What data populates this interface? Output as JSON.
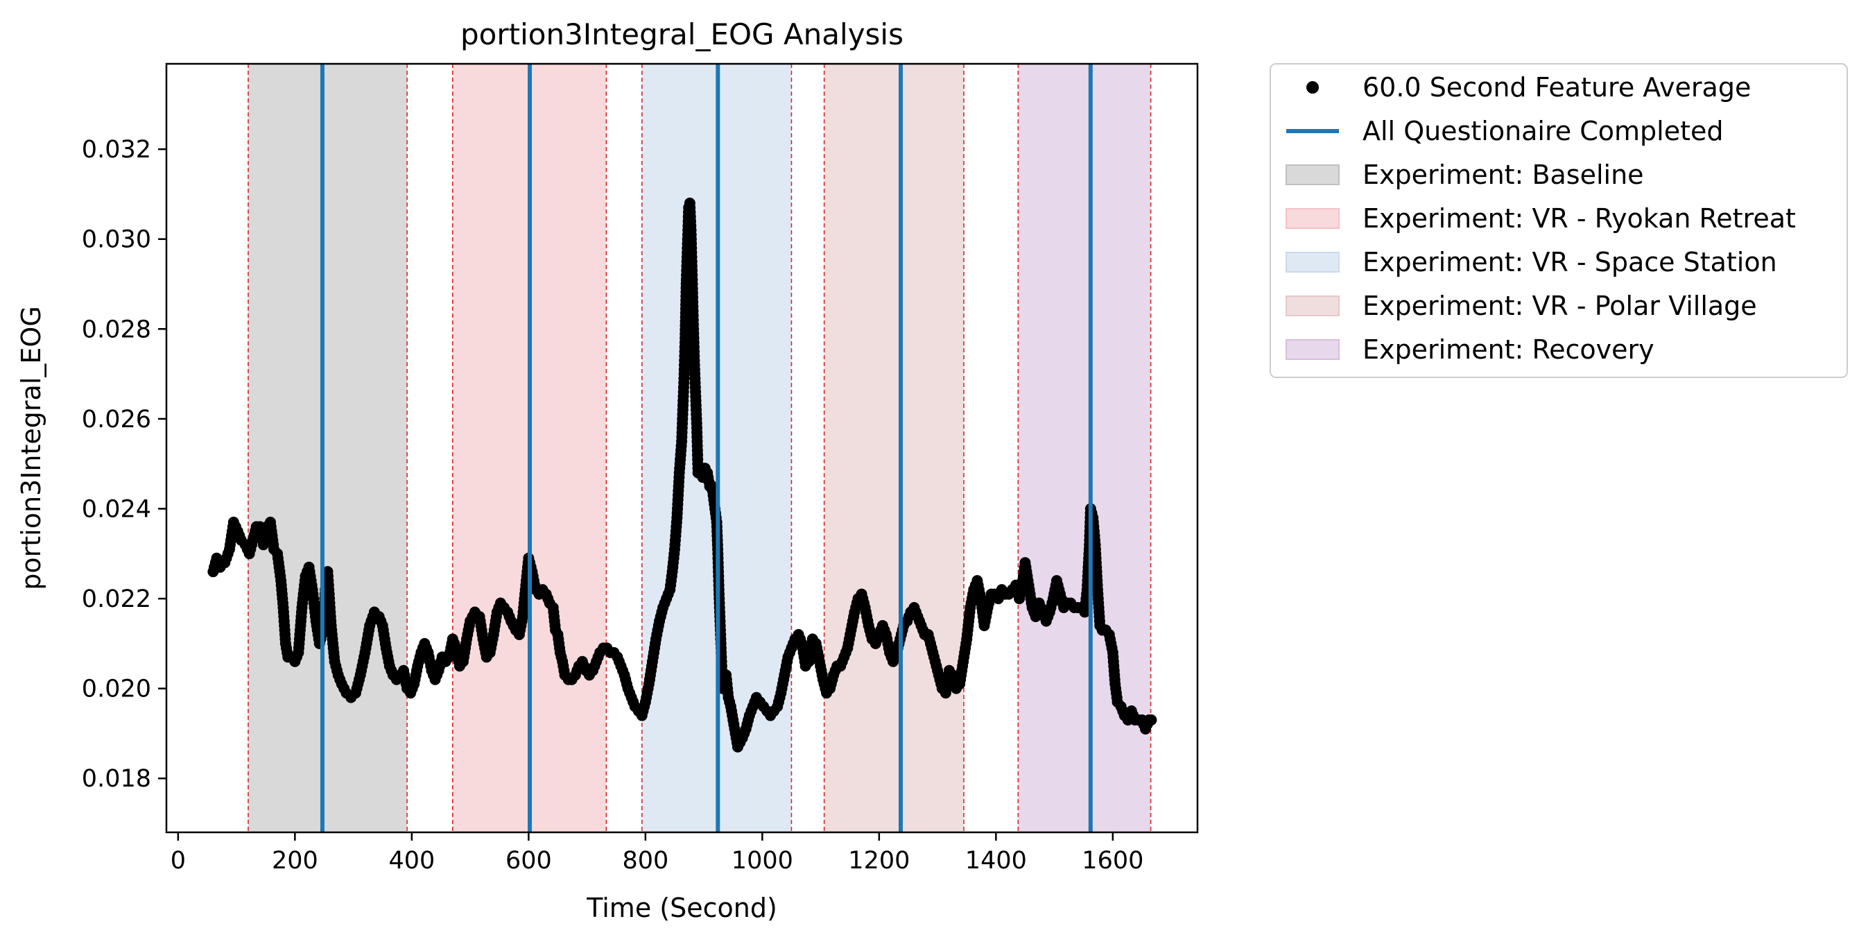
{
  "chart_data": {
    "type": "scatter",
    "title": "portion3Integral_EOG Analysis",
    "xlabel": "Time (Second)",
    "ylabel": "portion3Integral_EOG",
    "xlim": [
      -20,
      1745
    ],
    "ylim": [
      0.0168,
      0.0339
    ],
    "x_ticks": [
      0,
      200,
      400,
      600,
      800,
      1000,
      1200,
      1400,
      1600
    ],
    "x_tick_labels": [
      "0",
      "200",
      "400",
      "600",
      "800",
      "1000",
      "1200",
      "1400",
      "1600"
    ],
    "y_ticks": [
      0.018,
      0.02,
      0.022,
      0.024,
      0.026,
      0.028,
      0.03,
      0.032
    ],
    "y_tick_labels": [
      "0.018",
      "0.020",
      "0.022",
      "0.024",
      "0.026",
      "0.028",
      "0.030",
      "0.032"
    ],
    "grid": false,
    "legend_position": "outside-right-top",
    "series": [
      {
        "name": "60.0 Second Feature Average",
        "marker": "dot",
        "color": "#000000",
        "points": [
          [
            60,
            0.0226
          ],
          [
            66,
            0.0229
          ],
          [
            72,
            0.0227
          ],
          [
            80,
            0.0228
          ],
          [
            88,
            0.0231
          ],
          [
            95,
            0.0237
          ],
          [
            102,
            0.0235
          ],
          [
            108,
            0.0233
          ],
          [
            115,
            0.0232
          ],
          [
            122,
            0.023
          ],
          [
            128,
            0.0233
          ],
          [
            134,
            0.0236
          ],
          [
            140,
            0.0236
          ],
          [
            146,
            0.0232
          ],
          [
            152,
            0.0236
          ],
          [
            158,
            0.0237
          ],
          [
            164,
            0.0231
          ],
          [
            170,
            0.023
          ],
          [
            176,
            0.0224
          ],
          [
            180,
            0.0218
          ],
          [
            184,
            0.021
          ],
          [
            188,
            0.0207
          ],
          [
            194,
            0.0207
          ],
          [
            200,
            0.0206
          ],
          [
            206,
            0.0208
          ],
          [
            212,
            0.0218
          ],
          [
            218,
            0.0225
          ],
          [
            224,
            0.0227
          ],
          [
            230,
            0.0222
          ],
          [
            236,
            0.0215
          ],
          [
            242,
            0.021
          ],
          [
            248,
            0.0213
          ],
          [
            252,
            0.0222
          ],
          [
            256,
            0.0226
          ],
          [
            262,
            0.0214
          ],
          [
            268,
            0.0206
          ],
          [
            274,
            0.0203
          ],
          [
            280,
            0.0201
          ],
          [
            288,
            0.0199
          ],
          [
            296,
            0.0198
          ],
          [
            304,
            0.0199
          ],
          [
            312,
            0.0203
          ],
          [
            320,
            0.0208
          ],
          [
            328,
            0.0214
          ],
          [
            336,
            0.0217
          ],
          [
            344,
            0.0216
          ],
          [
            350,
            0.0214
          ],
          [
            356,
            0.0209
          ],
          [
            362,
            0.0205
          ],
          [
            368,
            0.0203
          ],
          [
            374,
            0.0202
          ],
          [
            380,
            0.0203
          ],
          [
            386,
            0.0204
          ],
          [
            392,
            0.02
          ],
          [
            398,
            0.0199
          ],
          [
            404,
            0.0201
          ],
          [
            410,
            0.0205
          ],
          [
            416,
            0.0208
          ],
          [
            422,
            0.021
          ],
          [
            428,
            0.0208
          ],
          [
            434,
            0.0204
          ],
          [
            440,
            0.0202
          ],
          [
            446,
            0.0204
          ],
          [
            452,
            0.0207
          ],
          [
            458,
            0.0206
          ],
          [
            464,
            0.0207
          ],
          [
            470,
            0.0211
          ],
          [
            476,
            0.0209
          ],
          [
            482,
            0.0205
          ],
          [
            488,
            0.0206
          ],
          [
            494,
            0.0211
          ],
          [
            500,
            0.0215
          ],
          [
            508,
            0.0217
          ],
          [
            516,
            0.0216
          ],
          [
            522,
            0.0211
          ],
          [
            528,
            0.0207
          ],
          [
            534,
            0.0208
          ],
          [
            540,
            0.0212
          ],
          [
            546,
            0.0217
          ],
          [
            552,
            0.0219
          ],
          [
            558,
            0.0218
          ],
          [
            564,
            0.0217
          ],
          [
            570,
            0.0215
          ],
          [
            578,
            0.0213
          ],
          [
            584,
            0.0212
          ],
          [
            590,
            0.0216
          ],
          [
            596,
            0.0224
          ],
          [
            600,
            0.0229
          ],
          [
            606,
            0.0226
          ],
          [
            612,
            0.0222
          ],
          [
            618,
            0.0221
          ],
          [
            624,
            0.0222
          ],
          [
            630,
            0.0221
          ],
          [
            636,
            0.0219
          ],
          [
            642,
            0.0218
          ],
          [
            646,
            0.0213
          ],
          [
            650,
            0.0212
          ],
          [
            654,
            0.0208
          ],
          [
            658,
            0.0206
          ],
          [
            662,
            0.0203
          ],
          [
            668,
            0.0202
          ],
          [
            674,
            0.0202
          ],
          [
            680,
            0.0203
          ],
          [
            686,
            0.0205
          ],
          [
            692,
            0.0206
          ],
          [
            698,
            0.0204
          ],
          [
            704,
            0.0203
          ],
          [
            710,
            0.0204
          ],
          [
            716,
            0.0206
          ],
          [
            722,
            0.0208
          ],
          [
            728,
            0.0209
          ],
          [
            734,
            0.0209
          ],
          [
            740,
            0.0208
          ],
          [
            746,
            0.0208
          ],
          [
            752,
            0.0207
          ],
          [
            758,
            0.0205
          ],
          [
            764,
            0.0203
          ],
          [
            770,
            0.02
          ],
          [
            776,
            0.0198
          ],
          [
            782,
            0.0196
          ],
          [
            788,
            0.0195
          ],
          [
            794,
            0.0194
          ],
          [
            800,
            0.0197
          ],
          [
            806,
            0.0201
          ],
          [
            812,
            0.0206
          ],
          [
            818,
            0.0211
          ],
          [
            824,
            0.0215
          ],
          [
            830,
            0.0218
          ],
          [
            836,
            0.022
          ],
          [
            842,
            0.0222
          ],
          [
            846,
            0.0226
          ],
          [
            850,
            0.0231
          ],
          [
            854,
            0.0238
          ],
          [
            858,
            0.0248
          ],
          [
            862,
            0.0255
          ],
          [
            864,
            0.0262
          ],
          [
            866,
            0.0269
          ],
          [
            868,
            0.0278
          ],
          [
            870,
            0.0291
          ],
          [
            872,
            0.0299
          ],
          [
            874,
            0.0307
          ],
          [
            876,
            0.0308
          ],
          [
            878,
            0.0302
          ],
          [
            880,
            0.0292
          ],
          [
            882,
            0.0281
          ],
          [
            884,
            0.0272
          ],
          [
            886,
            0.0265
          ],
          [
            888,
            0.0258
          ],
          [
            890,
            0.0248
          ],
          [
            894,
            0.0249
          ],
          [
            898,
            0.0247
          ],
          [
            902,
            0.0249
          ],
          [
            906,
            0.0248
          ],
          [
            910,
            0.0245
          ],
          [
            914,
            0.0245
          ],
          [
            918,
            0.0241
          ],
          [
            922,
            0.0237
          ],
          [
            924,
            0.023
          ],
          [
            926,
            0.0221
          ],
          [
            928,
            0.0214
          ],
          [
            930,
            0.0207
          ],
          [
            932,
            0.02
          ],
          [
            934,
            0.0202
          ],
          [
            938,
            0.0203
          ],
          [
            942,
            0.0198
          ],
          [
            946,
            0.0196
          ],
          [
            950,
            0.0193
          ],
          [
            954,
            0.019
          ],
          [
            958,
            0.0187
          ],
          [
            962,
            0.0188
          ],
          [
            966,
            0.0189
          ],
          [
            972,
            0.0191
          ],
          [
            978,
            0.0194
          ],
          [
            984,
            0.0196
          ],
          [
            990,
            0.0198
          ],
          [
            996,
            0.0197
          ],
          [
            1002,
            0.0196
          ],
          [
            1008,
            0.0195
          ],
          [
            1014,
            0.0194
          ],
          [
            1020,
            0.0195
          ],
          [
            1026,
            0.0196
          ],
          [
            1032,
            0.0199
          ],
          [
            1038,
            0.0203
          ],
          [
            1044,
            0.0207
          ],
          [
            1050,
            0.0209
          ],
          [
            1056,
            0.0211
          ],
          [
            1062,
            0.0212
          ],
          [
            1068,
            0.021
          ],
          [
            1074,
            0.0205
          ],
          [
            1080,
            0.0206
          ],
          [
            1086,
            0.0211
          ],
          [
            1092,
            0.021
          ],
          [
            1098,
            0.0206
          ],
          [
            1104,
            0.0202
          ],
          [
            1110,
            0.0199
          ],
          [
            1116,
            0.02
          ],
          [
            1122,
            0.0203
          ],
          [
            1128,
            0.0205
          ],
          [
            1134,
            0.0205
          ],
          [
            1140,
            0.0207
          ],
          [
            1146,
            0.0209
          ],
          [
            1152,
            0.0213
          ],
          [
            1158,
            0.0217
          ],
          [
            1164,
            0.022
          ],
          [
            1170,
            0.0221
          ],
          [
            1176,
            0.0218
          ],
          [
            1182,
            0.0214
          ],
          [
            1188,
            0.0211
          ],
          [
            1194,
            0.021
          ],
          [
            1200,
            0.0212
          ],
          [
            1206,
            0.0214
          ],
          [
            1212,
            0.0212
          ],
          [
            1218,
            0.0208
          ],
          [
            1224,
            0.0206
          ],
          [
            1230,
            0.0208
          ],
          [
            1236,
            0.0211
          ],
          [
            1242,
            0.0214
          ],
          [
            1248,
            0.0215
          ],
          [
            1254,
            0.0217
          ],
          [
            1260,
            0.0218
          ],
          [
            1266,
            0.0216
          ],
          [
            1272,
            0.0214
          ],
          [
            1278,
            0.0212
          ],
          [
            1284,
            0.0212
          ],
          [
            1290,
            0.0209
          ],
          [
            1296,
            0.0206
          ],
          [
            1302,
            0.0203
          ],
          [
            1308,
            0.02
          ],
          [
            1314,
            0.0199
          ],
          [
            1320,
            0.0204
          ],
          [
            1326,
            0.0203
          ],
          [
            1332,
            0.02
          ],
          [
            1338,
            0.0201
          ],
          [
            1344,
            0.0206
          ],
          [
            1350,
            0.0211
          ],
          [
            1356,
            0.0218
          ],
          [
            1362,
            0.0222
          ],
          [
            1368,
            0.0224
          ],
          [
            1374,
            0.022
          ],
          [
            1380,
            0.0214
          ],
          [
            1386,
            0.0218
          ],
          [
            1392,
            0.0221
          ],
          [
            1398,
            0.0221
          ],
          [
            1404,
            0.022
          ],
          [
            1410,
            0.0222
          ],
          [
            1416,
            0.0221
          ],
          [
            1422,
            0.0221
          ],
          [
            1428,
            0.0222
          ],
          [
            1434,
            0.0223
          ],
          [
            1440,
            0.022
          ],
          [
            1446,
            0.0224
          ],
          [
            1450,
            0.0228
          ],
          [
            1456,
            0.0223
          ],
          [
            1462,
            0.0218
          ],
          [
            1468,
            0.0216
          ],
          [
            1474,
            0.0219
          ],
          [
            1480,
            0.0217
          ],
          [
            1486,
            0.0215
          ],
          [
            1492,
            0.0217
          ],
          [
            1498,
            0.022
          ],
          [
            1504,
            0.0224
          ],
          [
            1510,
            0.0221
          ],
          [
            1516,
            0.0218
          ],
          [
            1522,
            0.0219
          ],
          [
            1528,
            0.0219
          ],
          [
            1534,
            0.0218
          ],
          [
            1540,
            0.0218
          ],
          [
            1546,
            0.0218
          ],
          [
            1552,
            0.0217
          ],
          [
            1556,
            0.0222
          ],
          [
            1560,
            0.0232
          ],
          [
            1562,
            0.024
          ],
          [
            1566,
            0.0238
          ],
          [
            1570,
            0.0232
          ],
          [
            1574,
            0.0222
          ],
          [
            1578,
            0.0214
          ],
          [
            1582,
            0.0213
          ],
          [
            1588,
            0.0213
          ],
          [
            1594,
            0.0212
          ],
          [
            1600,
            0.0208
          ],
          [
            1604,
            0.0201
          ],
          [
            1608,
            0.0197
          ],
          [
            1614,
            0.0196
          ],
          [
            1620,
            0.0194
          ],
          [
            1626,
            0.0193
          ],
          [
            1632,
            0.0195
          ],
          [
            1638,
            0.0193
          ],
          [
            1644,
            0.0193
          ],
          [
            1650,
            0.0193
          ],
          [
            1656,
            0.0191
          ],
          [
            1662,
            0.0193
          ],
          [
            1666,
            0.0193
          ]
        ]
      },
      {
        "name": "All Questionaire Completed",
        "marker": "vertical-line",
        "color": "#1f77b4",
        "x": [
          247,
          602,
          924,
          1237,
          1562
        ]
      }
    ],
    "regions": [
      {
        "name": "Experiment: Baseline",
        "x0": 120,
        "x1": 392,
        "color": "#bfbfbf"
      },
      {
        "name": "Experiment: VR - Ryokan Retreat",
        "x0": 470,
        "x1": 733,
        "color": "#f4c1c6"
      },
      {
        "name": "Experiment: VR - Space Station",
        "x0": 794,
        "x1": 1050,
        "color": "#c9dbec"
      },
      {
        "name": "Experiment: VR - Polar Village",
        "x0": 1106,
        "x1": 1345,
        "color": "#e6c8c8"
      },
      {
        "name": "Experiment: Recovery",
        "x0": 1438,
        "x1": 1665,
        "color": "#d8bedf"
      }
    ],
    "region_boundary_color": "#d62728"
  }
}
